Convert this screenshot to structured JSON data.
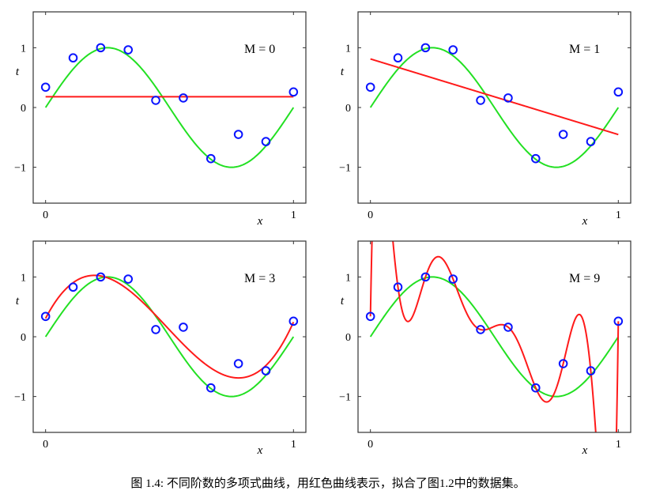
{
  "figure": {
    "caption": "图 1.4: 不同阶数的多项式曲线，用红色曲线表示，拟合了图1.2中的数据集。"
  },
  "colors": {
    "data_points": "#0a14ff",
    "true_curve": "#22e022",
    "fit_curve": "#ff1a1a",
    "axes": "#333333"
  },
  "chart_data": [
    {
      "type": "line",
      "label": "M = 0",
      "M": 0,
      "xlabel": "x",
      "ylabel": "t",
      "xlim": [
        -0.05,
        1.05
      ],
      "ylim": [
        -1.6,
        1.6
      ],
      "xticks": [
        0,
        1
      ],
      "xtick_labels": [
        "0",
        "1"
      ],
      "yticks": [
        -1,
        0,
        1
      ],
      "ytick_labels": [
        "−1",
        "0",
        "1"
      ],
      "series": [
        {
          "name": "data",
          "type": "scatter",
          "x": [
            0,
            0.1111,
            0.2222,
            0.3333,
            0.4444,
            0.5556,
            0.6667,
            0.7778,
            0.8889,
            1.0
          ],
          "y": [
            0.34,
            0.83,
            1.0,
            0.965,
            0.12,
            0.16,
            -0.855,
            -0.45,
            -0.57,
            0.26
          ]
        },
        {
          "name": "sin(2πx)",
          "type": "line",
          "function": "sin(2*pi*x)"
        },
        {
          "name": "polynomial fit",
          "type": "line",
          "degree": 0
        }
      ]
    },
    {
      "type": "line",
      "label": "M = 1",
      "M": 1,
      "xlabel": "x",
      "ylabel": "t",
      "xlim": [
        -0.05,
        1.05
      ],
      "ylim": [
        -1.6,
        1.6
      ],
      "xticks": [
        0,
        1
      ],
      "xtick_labels": [
        "0",
        "1"
      ],
      "yticks": [
        -1,
        0,
        1
      ],
      "ytick_labels": [
        "−1",
        "0",
        "1"
      ],
      "series": [
        {
          "name": "data",
          "type": "scatter",
          "x": [
            0,
            0.1111,
            0.2222,
            0.3333,
            0.4444,
            0.5556,
            0.6667,
            0.7778,
            0.8889,
            1.0
          ],
          "y": [
            0.34,
            0.83,
            1.0,
            0.965,
            0.12,
            0.16,
            -0.855,
            -0.45,
            -0.57,
            0.26
          ]
        },
        {
          "name": "sin(2πx)",
          "type": "line",
          "function": "sin(2*pi*x)"
        },
        {
          "name": "polynomial fit",
          "type": "line",
          "degree": 1
        }
      ]
    },
    {
      "type": "line",
      "label": "M = 3",
      "M": 3,
      "xlabel": "x",
      "ylabel": "t",
      "xlim": [
        -0.05,
        1.05
      ],
      "ylim": [
        -1.6,
        1.6
      ],
      "xticks": [
        0,
        1
      ],
      "xtick_labels": [
        "0",
        "1"
      ],
      "yticks": [
        -1,
        0,
        1
      ],
      "ytick_labels": [
        "−1",
        "0",
        "1"
      ],
      "series": [
        {
          "name": "data",
          "type": "scatter",
          "x": [
            0,
            0.1111,
            0.2222,
            0.3333,
            0.4444,
            0.5556,
            0.6667,
            0.7778,
            0.8889,
            1.0
          ],
          "y": [
            0.34,
            0.83,
            1.0,
            0.965,
            0.12,
            0.16,
            -0.855,
            -0.45,
            -0.57,
            0.26
          ]
        },
        {
          "name": "sin(2πx)",
          "type": "line",
          "function": "sin(2*pi*x)"
        },
        {
          "name": "polynomial fit",
          "type": "line",
          "degree": 3
        }
      ]
    },
    {
      "type": "line",
      "label": "M = 9",
      "M": 9,
      "xlabel": "x",
      "ylabel": "t",
      "xlim": [
        -0.05,
        1.05
      ],
      "ylim": [
        -1.6,
        1.6
      ],
      "xticks": [
        0,
        1
      ],
      "xtick_labels": [
        "0",
        "1"
      ],
      "yticks": [
        -1,
        0,
        1
      ],
      "ytick_labels": [
        "−1",
        "0",
        "1"
      ],
      "series": [
        {
          "name": "data",
          "type": "scatter",
          "x": [
            0,
            0.1111,
            0.2222,
            0.3333,
            0.4444,
            0.5556,
            0.6667,
            0.7778,
            0.8889,
            1.0
          ],
          "y": [
            0.34,
            0.83,
            1.0,
            0.965,
            0.12,
            0.16,
            -0.855,
            -0.45,
            -0.57,
            0.26
          ]
        },
        {
          "name": "sin(2πx)",
          "type": "line",
          "function": "sin(2*pi*x)"
        },
        {
          "name": "polynomial fit",
          "type": "line",
          "degree": 9
        }
      ]
    }
  ]
}
